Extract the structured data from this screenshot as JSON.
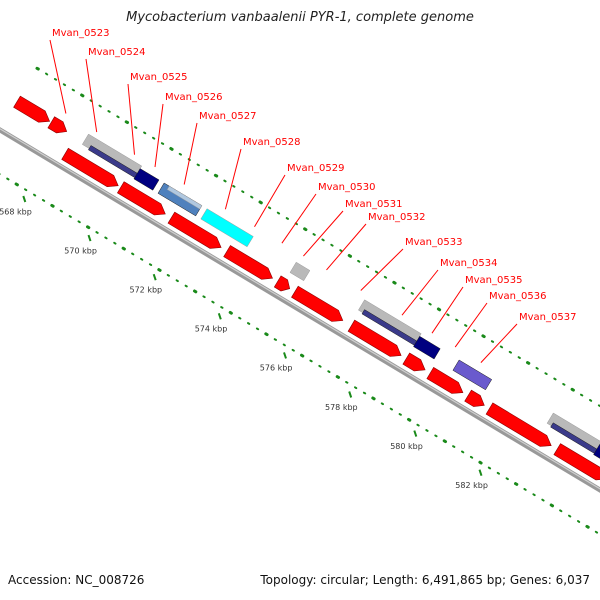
{
  "title": "Mycobacterium vanbaalenii PYR-1, complete genome",
  "footer": {
    "accession": "Accession: NC_008726",
    "topology": "Topology: circular; Length: 6,491,865 bp; Genes: 6,037"
  },
  "colors": {
    "forward_cds": "#ff0000",
    "reverse_cds": "#ff0000",
    "backbone": "#888888",
    "gc_marks": "#1a8a1a",
    "label_text": "#ff0000",
    "label_line": "#ff0000",
    "scale_text": "#333333",
    "blast_light": "#b9b9b9",
    "blast_dark": "#000080",
    "blast_blue": "#4f81bd",
    "blast_cyan": "#00ffff",
    "blast_violet": "#6a5acd"
  },
  "scale_labels": [
    {
      "text": "568 kbp",
      "kbp": 568
    },
    {
      "text": "570 kbp",
      "kbp": 570
    },
    {
      "text": "572 kbp",
      "kbp": 572
    },
    {
      "text": "574 kbp",
      "kbp": 574
    },
    {
      "text": "576 kbp",
      "kbp": 576
    },
    {
      "text": "578 kbp",
      "kbp": 578
    },
    {
      "text": "580 kbp",
      "kbp": 580
    },
    {
      "text": "582 kbp",
      "kbp": 582
    }
  ],
  "gene_labels": [
    "Mvan_0523",
    "Mvan_0524",
    "Mvan_0525",
    "Mvan_0526",
    "Mvan_0527",
    "Mvan_0528",
    "Mvan_0529",
    "Mvan_0530",
    "Mvan_0531",
    "Mvan_0532",
    "Mvan_0533",
    "Mvan_0534",
    "Mvan_0535",
    "Mvan_0536",
    "Mvan_0537"
  ]
}
